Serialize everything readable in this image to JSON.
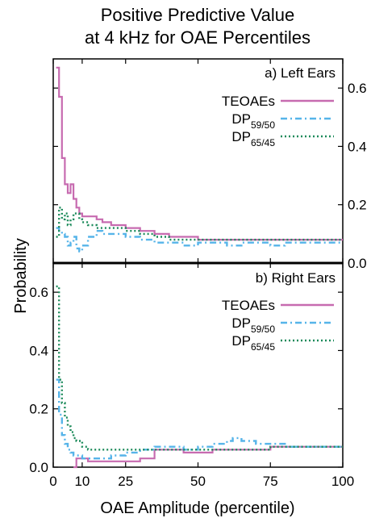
{
  "chart_data": {
    "type": "line",
    "title": [
      "Positive Predictive Value",
      "at 4 kHz for OAE Percentiles"
    ],
    "xlabel": "OAE Amplitude (percentile)",
    "ylabel": "Probability",
    "xlim": [
      0,
      100
    ],
    "xticks": [
      0,
      10,
      25,
      50,
      75,
      100
    ],
    "grid": false,
    "colors": {
      "TEOAEs": "#c76bb0",
      "DP59/50": "#56b4e9",
      "DP65/45": "#1b8a5a"
    },
    "panels": [
      {
        "label": "a) Left Ears",
        "ylim": [
          0,
          0.7
        ],
        "yticks": [
          0.0,
          0.2,
          0.4,
          0.6
        ],
        "y_axis_side": "right",
        "legend_placement": "top-right",
        "series": [
          {
            "name": "TEOAEs",
            "name_base": "TEOAEs",
            "name_sub": "",
            "style": "solid",
            "x": [
              1,
              2,
              3,
              4,
              5,
              6,
              7,
              8,
              9,
              10,
              12,
              15,
              17,
              20,
              25,
              30,
              35,
              40,
              45,
              50,
              55,
              60,
              65,
              70,
              75,
              80,
              85,
              90,
              95,
              100
            ],
            "y": [
              0.67,
              0.57,
              0.36,
              0.27,
              0.24,
              0.27,
              0.22,
              0.19,
              0.17,
              0.16,
              0.16,
              0.15,
              0.14,
              0.13,
              0.12,
              0.11,
              0.1,
              0.09,
              0.09,
              0.08,
              0.08,
              0.08,
              0.08,
              0.08,
              0.08,
              0.08,
              0.08,
              0.08,
              0.08,
              0.08
            ]
          },
          {
            "name": "DP59/50",
            "name_base": "DP",
            "name_sub": "59/50",
            "style": "dashdot",
            "x": [
              1,
              2,
              3,
              4,
              5,
              6,
              7,
              8,
              9,
              10,
              12,
              15,
              17,
              20,
              25,
              30,
              35,
              40,
              45,
              50,
              55,
              60,
              65,
              70,
              75,
              80,
              85,
              90,
              95,
              100
            ],
            "y": [
              0.12,
              0.11,
              0.1,
              0.09,
              0.06,
              0.07,
              0.09,
              0.05,
              0.04,
              0.06,
              0.09,
              0.11,
              0.1,
              0.1,
              0.09,
              0.08,
              0.07,
              0.07,
              0.06,
              0.07,
              0.07,
              0.06,
              0.07,
              0.07,
              0.06,
              0.07,
              0.07,
              0.07,
              0.07,
              0.07
            ]
          },
          {
            "name": "DP65/45",
            "name_base": "DP",
            "name_sub": "65/45",
            "style": "dotted",
            "x": [
              1,
              2,
              3,
              4,
              5,
              6,
              7,
              8,
              9,
              10,
              12,
              15,
              17,
              20,
              25,
              30,
              35,
              40,
              45,
              50,
              55,
              60,
              65,
              70,
              75,
              80,
              85,
              90,
              95,
              100
            ],
            "y": [
              0.09,
              0.19,
              0.15,
              0.17,
              0.13,
              0.15,
              0.17,
              0.17,
              0.15,
              0.14,
              0.13,
              0.12,
              0.12,
              0.12,
              0.11,
              0.1,
              0.09,
              0.08,
              0.08,
              0.08,
              0.08,
              0.08,
              0.08,
              0.08,
              0.08,
              0.08,
              0.08,
              0.08,
              0.08,
              0.08
            ]
          }
        ]
      },
      {
        "label": "b) Right Ears",
        "ylim": [
          0,
          0.7
        ],
        "yticks": [
          0.0,
          0.2,
          0.4,
          0.6
        ],
        "y_axis_side": "left",
        "legend_placement": "top-right",
        "series": [
          {
            "name": "TEOAEs",
            "name_base": "TEOAEs",
            "name_sub": "",
            "style": "solid",
            "x": [
              7,
              8,
              10,
              12,
              15,
              20,
              25,
              30,
              35,
              40,
              45,
              50,
              55,
              60,
              65,
              70,
              75,
              80,
              85,
              90,
              95,
              100
            ],
            "y": [
              0.0,
              0.03,
              0.03,
              0.02,
              0.02,
              0.02,
              0.02,
              0.03,
              0.06,
              0.06,
              0.05,
              0.05,
              0.06,
              0.06,
              0.06,
              0.06,
              0.07,
              0.07,
              0.07,
              0.07,
              0.07,
              0.07
            ]
          },
          {
            "name": "DP59/50",
            "name_base": "DP",
            "name_sub": "59/50",
            "style": "dashdot",
            "x": [
              1,
              2,
              3,
              4,
              5,
              6,
              7,
              8,
              10,
              12,
              15,
              20,
              25,
              30,
              35,
              40,
              45,
              50,
              55,
              60,
              62,
              65,
              70,
              75,
              80,
              85,
              90,
              95,
              100
            ],
            "y": [
              0.3,
              0.18,
              0.11,
              0.08,
              0.06,
              0.05,
              0.04,
              0.04,
              0.03,
              0.03,
              0.03,
              0.04,
              0.05,
              0.06,
              0.07,
              0.07,
              0.06,
              0.07,
              0.08,
              0.09,
              0.1,
              0.09,
              0.08,
              0.08,
              0.07,
              0.07,
              0.07,
              0.07,
              0.07
            ]
          },
          {
            "name": "DP65/45",
            "name_base": "DP",
            "name_sub": "65/45",
            "style": "dotted",
            "x": [
              1,
              2,
              3,
              4,
              5,
              6,
              7,
              8,
              10,
              12,
              15,
              20,
              25,
              30,
              35,
              40,
              45,
              50,
              55,
              60,
              65,
              70,
              75,
              80,
              85,
              90,
              95,
              100
            ],
            "y": [
              0.62,
              0.3,
              0.22,
              0.17,
              0.14,
              0.12,
              0.1,
              0.09,
              0.07,
              0.06,
              0.06,
              0.06,
              0.06,
              0.06,
              0.06,
              0.06,
              0.06,
              0.06,
              0.06,
              0.06,
              0.06,
              0.06,
              0.07,
              0.07,
              0.07,
              0.07,
              0.07,
              0.07
            ]
          }
        ]
      }
    ]
  }
}
